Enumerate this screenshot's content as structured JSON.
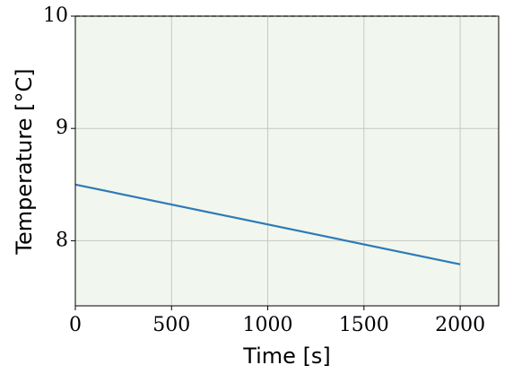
{
  "chart_data": {
    "type": "line",
    "x_label": "Time [s]",
    "y_label": "Temperature [°C]",
    "x": [
      0,
      2000
    ],
    "series": [
      {
        "color": "#2e7ab8",
        "values": [
          8.5,
          7.79
        ]
      }
    ],
    "xlim": [
      0,
      2200
    ],
    "ylim": [
      7.42,
      10
    ],
    "xticks": [
      0,
      500,
      1000,
      1500,
      2000
    ],
    "yticks": [
      8,
      9,
      10
    ],
    "hline": 10,
    "grid": true,
    "background": "#f1f7ee"
  }
}
